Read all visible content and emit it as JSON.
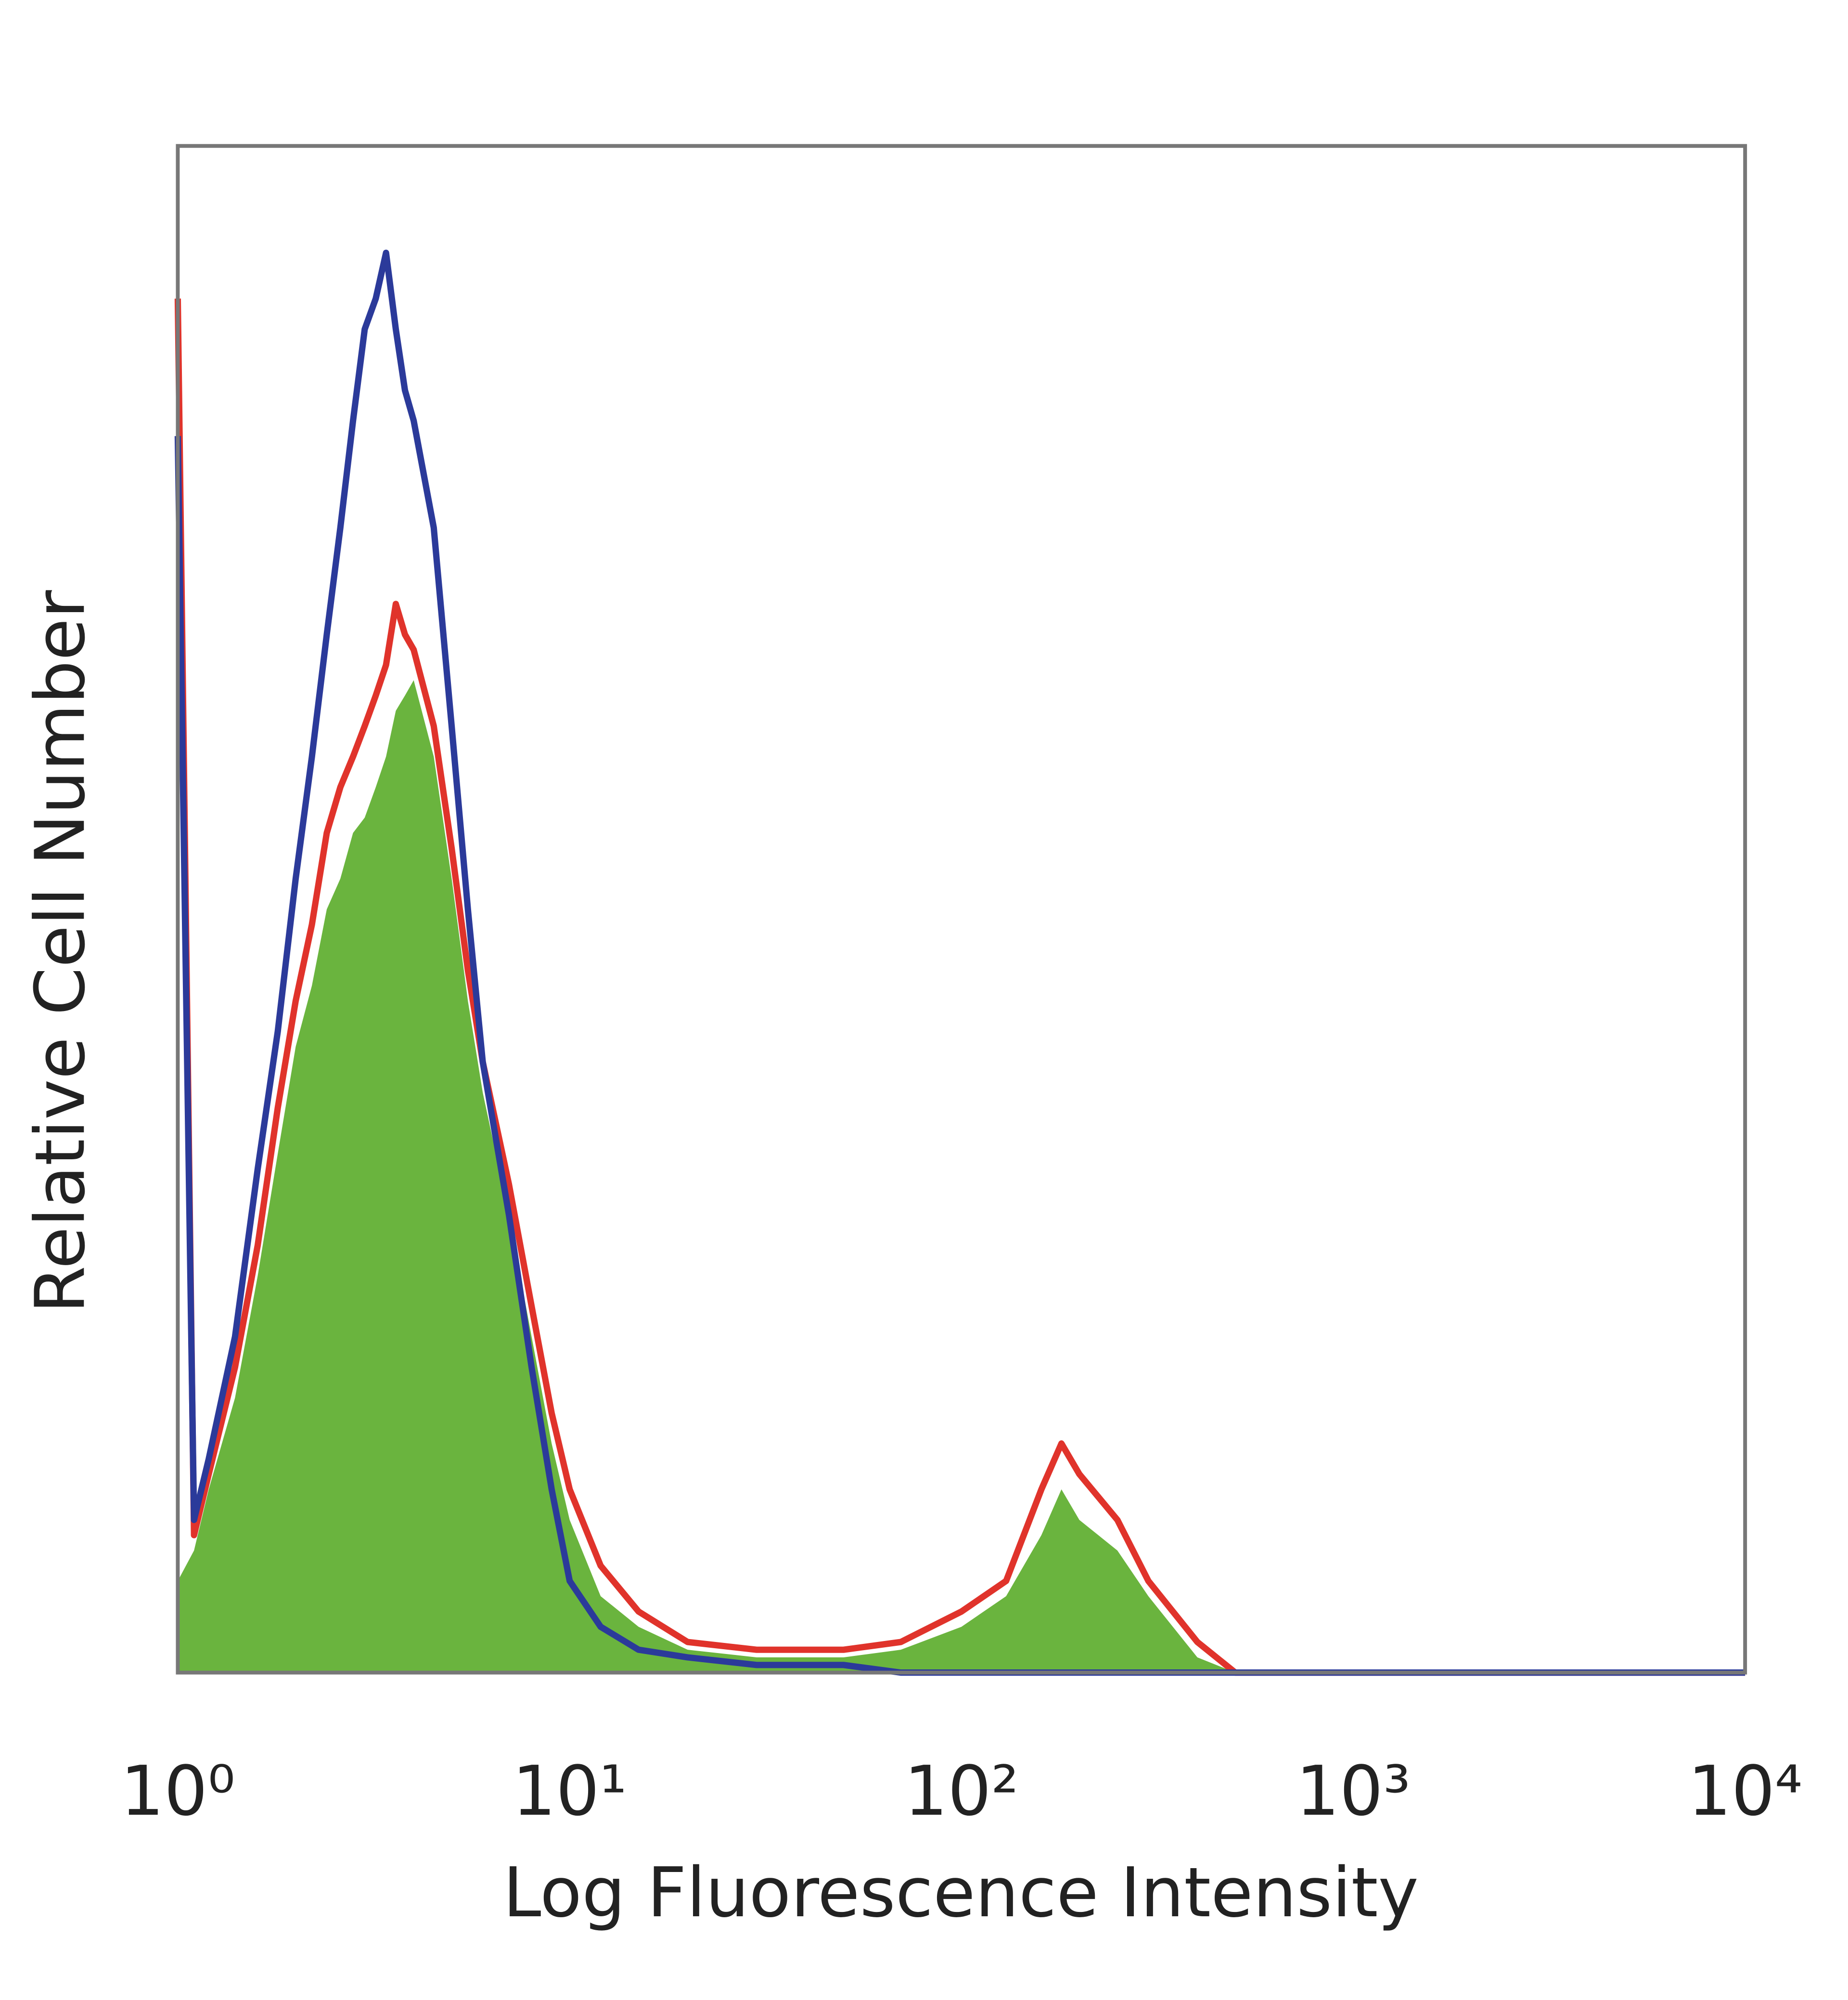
{
  "chart_data": {
    "type": "histogram-overlay",
    "xlabel": "Log Fluorescence Intensity",
    "ylabel": "Relative Cell Number",
    "xscale": "log",
    "xlim": [
      1,
      10000
    ],
    "ylim": [
      0,
      100
    ],
    "xticks": [
      {
        "value": 1,
        "label": "10⁰"
      },
      {
        "value": 10,
        "label": "10¹"
      },
      {
        "value": 100,
        "label": "10²"
      },
      {
        "value": 1000,
        "label": "10³"
      },
      {
        "value": 10000,
        "label": "10⁴"
      }
    ],
    "x": [
      1,
      1.1,
      1.2,
      1.4,
      1.6,
      1.8,
      2,
      2.2,
      2.4,
      2.6,
      2.8,
      3,
      3.2,
      3.4,
      3.6,
      3.8,
      4,
      4.5,
      5,
      5.5,
      6,
      7,
      8,
      9,
      10,
      12,
      15,
      20,
      30,
      50,
      70,
      100,
      130,
      160,
      180,
      200,
      250,
      300,
      400,
      500,
      1000,
      10000
    ],
    "series": [
      {
        "color": "#6ab43e",
        "fill": true,
        "values": [
          6,
          8,
          12,
          18,
          26,
          34,
          41,
          45,
          50,
          52,
          55,
          56,
          58,
          60,
          63,
          64,
          65,
          60,
          52,
          44,
          38,
          30,
          22,
          15,
          10,
          5,
          3,
          1.5,
          1,
          1,
          1.5,
          3,
          5,
          9,
          12,
          10,
          8,
          5,
          1,
          0,
          0,
          0
        ]
      },
      {
        "color": "#e0332b",
        "fill": false,
        "values": [
          90,
          9,
          13,
          20,
          28,
          37,
          44,
          49,
          55,
          58,
          60,
          62,
          64,
          66,
          70,
          68,
          67,
          62,
          54,
          46,
          40,
          32,
          24,
          17,
          12,
          7,
          4,
          2,
          1.5,
          1.5,
          2,
          4,
          6,
          12,
          15,
          13,
          10,
          6,
          2,
          0,
          0,
          0
        ]
      },
      {
        "color": "#2b3a9a",
        "fill": false,
        "values": [
          81,
          10,
          14,
          22,
          33,
          42,
          52,
          60,
          68,
          75,
          82,
          88,
          90,
          93,
          88,
          84,
          82,
          75,
          62,
          50,
          40,
          30,
          20,
          12,
          6,
          3,
          1.5,
          1,
          0.5,
          0.5,
          0,
          0,
          0,
          0,
          0,
          0,
          0,
          0,
          0,
          0,
          0,
          0
        ]
      }
    ]
  }
}
